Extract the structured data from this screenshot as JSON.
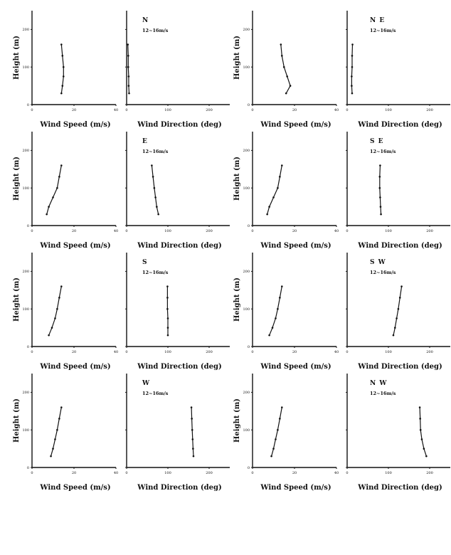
{
  "figure": {
    "x_label_speed": "Wind Speed (m/s)",
    "x_label_direction": "Wind Direction (deg)",
    "y_label": "Height (m)",
    "speed_range_label": "12~16m/s",
    "y_ticks": [
      "0",
      "100",
      "200"
    ],
    "speed_ticks": [
      "0",
      "20",
      "40"
    ],
    "direction_ticks": [
      "0",
      "100",
      "200"
    ]
  },
  "chart_data": [
    {
      "direction": "N",
      "type": "line",
      "xlabel": "Wind Speed (m/s)",
      "ylabel": "Height (m)",
      "xlim": [
        0,
        40
      ],
      "ylim": [
        0,
        250
      ],
      "series": [
        {
          "x": [
            14,
            14.5,
            15,
            15,
            14.5,
            14
          ],
          "y": [
            30,
            50,
            75,
            100,
            130,
            160
          ]
        }
      ]
    },
    {
      "direction": "N",
      "type": "line",
      "xlabel": "Wind Direction (deg)",
      "ylabel": "",
      "xlim": [
        0,
        250
      ],
      "ylim": [
        0,
        250
      ],
      "series": [
        {
          "x": [
            6,
            5,
            5,
            4,
            4,
            3
          ],
          "y": [
            30,
            50,
            75,
            100,
            130,
            160
          ]
        }
      ]
    },
    {
      "direction": "NE",
      "type": "line",
      "xlabel": "Wind Speed (m/s)",
      "ylabel": "Height (m)",
      "xlim": [
        0,
        40
      ],
      "ylim": [
        0,
        250
      ],
      "series": [
        {
          "x": [
            16,
            18,
            16.5,
            15,
            14,
            13.5
          ],
          "y": [
            30,
            50,
            75,
            100,
            130,
            160
          ]
        }
      ]
    },
    {
      "direction": "NE",
      "type": "line",
      "xlabel": "Wind Direction (deg)",
      "ylabel": "",
      "xlim": [
        0,
        250
      ],
      "ylim": [
        0,
        250
      ],
      "series": [
        {
          "x": [
            12,
            11,
            11,
            12,
            12,
            13
          ],
          "y": [
            30,
            50,
            75,
            100,
            130,
            160
          ]
        }
      ]
    },
    {
      "direction": "E",
      "type": "line",
      "xlabel": "Wind Speed (m/s)",
      "ylabel": "Height (m)",
      "xlim": [
        0,
        40
      ],
      "ylim": [
        0,
        250
      ],
      "series": [
        {
          "x": [
            7,
            8,
            10,
            12,
            13,
            14
          ],
          "y": [
            30,
            50,
            75,
            100,
            130,
            160
          ]
        }
      ]
    },
    {
      "direction": "E",
      "type": "line",
      "xlabel": "Wind Direction (deg)",
      "ylabel": "",
      "xlim": [
        0,
        250
      ],
      "ylim": [
        0,
        250
      ],
      "series": [
        {
          "x": [
            77,
            73,
            70,
            67,
            64,
            61
          ],
          "y": [
            30,
            50,
            75,
            100,
            130,
            160
          ]
        }
      ]
    },
    {
      "direction": "SE",
      "type": "line",
      "xlabel": "Wind Speed (m/s)",
      "ylabel": "Height (m)",
      "xlim": [
        0,
        40
      ],
      "ylim": [
        0,
        250
      ],
      "series": [
        {
          "x": [
            7,
            8,
            10,
            12,
            13,
            14
          ],
          "y": [
            30,
            50,
            75,
            100,
            130,
            160
          ]
        }
      ]
    },
    {
      "direction": "SE",
      "type": "line",
      "xlabel": "Wind Direction (deg)",
      "ylabel": "",
      "xlim": [
        0,
        250
      ],
      "ylim": [
        0,
        250
      ],
      "series": [
        {
          "x": [
            82,
            81,
            80,
            79,
            79,
            80
          ],
          "y": [
            30,
            50,
            75,
            100,
            130,
            160
          ]
        }
      ]
    },
    {
      "direction": "S",
      "type": "line",
      "xlabel": "Wind Speed (m/s)",
      "ylabel": "Height (m)",
      "xlim": [
        0,
        40
      ],
      "ylim": [
        0,
        250
      ],
      "series": [
        {
          "x": [
            8,
            9.5,
            11,
            12,
            13,
            14
          ],
          "y": [
            30,
            50,
            75,
            100,
            130,
            160
          ]
        }
      ]
    },
    {
      "direction": "S",
      "type": "line",
      "xlabel": "Wind Direction (deg)",
      "ylabel": "",
      "xlim": [
        0,
        250
      ],
      "ylim": [
        0,
        250
      ],
      "series": [
        {
          "x": [
            100,
            100,
            100,
            99,
            99,
            99
          ],
          "y": [
            30,
            50,
            75,
            100,
            130,
            160
          ]
        }
      ]
    },
    {
      "direction": "SW",
      "type": "line",
      "xlabel": "Wind Speed (m/s)",
      "ylabel": "Height (m)",
      "xlim": [
        0,
        40
      ],
      "ylim": [
        0,
        250
      ],
      "series": [
        {
          "x": [
            8,
            9.5,
            11,
            12,
            13,
            14
          ],
          "y": [
            30,
            50,
            75,
            100,
            130,
            160
          ]
        }
      ]
    },
    {
      "direction": "SW",
      "type": "line",
      "xlabel": "Wind Direction (deg)",
      "ylabel": "",
      "xlim": [
        0,
        250
      ],
      "ylim": [
        0,
        250
      ],
      "series": [
        {
          "x": [
            112,
            116,
            120,
            124,
            128,
            132
          ],
          "y": [
            30,
            50,
            75,
            100,
            130,
            160
          ]
        }
      ]
    },
    {
      "direction": "W",
      "type": "line",
      "xlabel": "Wind Speed (m/s)",
      "ylabel": "Height (m)",
      "xlim": [
        0,
        40
      ],
      "ylim": [
        0,
        250
      ],
      "series": [
        {
          "x": [
            9,
            10,
            11,
            12,
            13,
            14
          ],
          "y": [
            30,
            50,
            75,
            100,
            130,
            160
          ]
        }
      ]
    },
    {
      "direction": "W",
      "type": "line",
      "xlabel": "Wind Direction (deg)",
      "ylabel": "",
      "xlim": [
        0,
        250
      ],
      "ylim": [
        0,
        250
      ],
      "series": [
        {
          "x": [
            162,
            161,
            160,
            159,
            158,
            157
          ],
          "y": [
            30,
            50,
            75,
            100,
            130,
            160
          ]
        }
      ]
    },
    {
      "direction": "NW",
      "type": "line",
      "xlabel": "Wind Speed (m/s)",
      "ylabel": "Height (m)",
      "xlim": [
        0,
        40
      ],
      "ylim": [
        0,
        250
      ],
      "series": [
        {
          "x": [
            9,
            10,
            11,
            12,
            13,
            14
          ],
          "y": [
            30,
            50,
            75,
            100,
            130,
            160
          ]
        }
      ]
    },
    {
      "direction": "NW",
      "type": "line",
      "xlabel": "Wind Direction (deg)",
      "ylabel": "",
      "xlim": [
        0,
        250
      ],
      "ylim": [
        0,
        250
      ],
      "series": [
        {
          "x": [
            192,
            186,
            181,
            178,
            177,
            176
          ],
          "y": [
            30,
            50,
            75,
            100,
            130,
            160
          ]
        }
      ]
    }
  ]
}
